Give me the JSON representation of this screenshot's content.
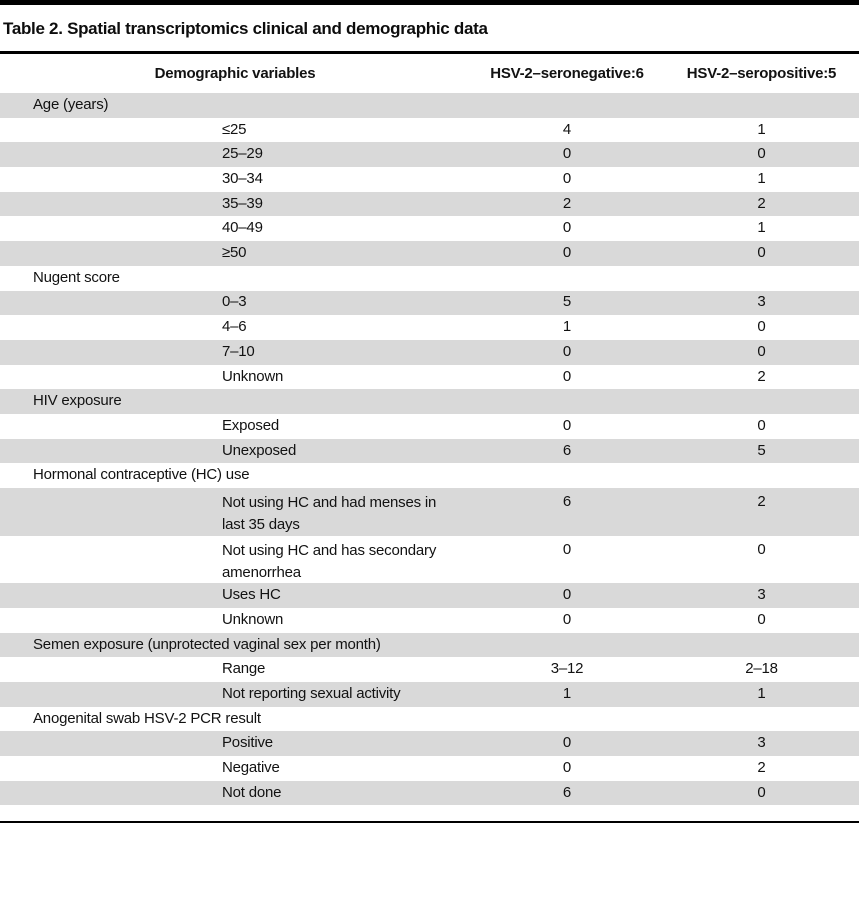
{
  "table": {
    "title": "Table 2. Spatial transcriptomics clinical and demographic data",
    "columns": {
      "label": "Demographic variables",
      "neg": "HSV-2–seronegative:6",
      "pos": "HSV-2–seropositive:5"
    },
    "rows": [
      {
        "type": "section",
        "label": "Age (years)",
        "neg": "",
        "pos": ""
      },
      {
        "type": "item",
        "label": "≤25",
        "neg": "4",
        "pos": "1"
      },
      {
        "type": "item",
        "label": "25–29",
        "neg": "0",
        "pos": "0"
      },
      {
        "type": "item",
        "label": "30–34",
        "neg": "0",
        "pos": "1"
      },
      {
        "type": "item",
        "label": "35–39",
        "neg": "2",
        "pos": "2"
      },
      {
        "type": "item",
        "label": "40–49",
        "neg": "0",
        "pos": "1"
      },
      {
        "type": "item",
        "label": "≥50",
        "neg": "0",
        "pos": "0"
      },
      {
        "type": "section",
        "label": "Nugent score",
        "neg": "",
        "pos": ""
      },
      {
        "type": "item",
        "label": "0–3",
        "neg": "5",
        "pos": "3"
      },
      {
        "type": "item",
        "label": "4–6",
        "neg": "1",
        "pos": "0"
      },
      {
        "type": "item",
        "label": "7–10",
        "neg": "0",
        "pos": "0"
      },
      {
        "type": "item",
        "label": "Unknown",
        "neg": "0",
        "pos": "2"
      },
      {
        "type": "section",
        "label": "HIV exposure",
        "neg": "",
        "pos": ""
      },
      {
        "type": "item",
        "label": "Exposed",
        "neg": "0",
        "pos": "0"
      },
      {
        "type": "item",
        "label": "Unexposed",
        "neg": "6",
        "pos": "5"
      },
      {
        "type": "section",
        "label": "Hormonal contraceptive (HC) use",
        "neg": "",
        "pos": ""
      },
      {
        "type": "item",
        "label": "Not using HC and had menses in last 35 days",
        "neg": "6",
        "pos": "2"
      },
      {
        "type": "item",
        "label": "Not using HC and has secondary amenorrhea",
        "neg": "0",
        "pos": "0"
      },
      {
        "type": "item",
        "label": "Uses HC",
        "neg": "0",
        "pos": "3"
      },
      {
        "type": "item",
        "label": "Unknown",
        "neg": "0",
        "pos": "0"
      },
      {
        "type": "section",
        "label": "Semen exposure (unprotected vaginal sex per month)",
        "neg": "",
        "pos": ""
      },
      {
        "type": "item",
        "label": "Range",
        "neg": "3–12",
        "pos": "2–18"
      },
      {
        "type": "item",
        "label": "Not reporting sexual activity",
        "neg": "1",
        "pos": "1"
      },
      {
        "type": "section",
        "label": "Anogenital swab HSV-2 PCR result",
        "neg": "",
        "pos": ""
      },
      {
        "type": "item",
        "label": "Positive",
        "neg": "0",
        "pos": "3"
      },
      {
        "type": "item",
        "label": "Negative",
        "neg": "0",
        "pos": "2"
      },
      {
        "type": "item",
        "label": "Not done",
        "neg": "6",
        "pos": "0"
      }
    ]
  },
  "colors": {
    "stripe": "#d9d9d9",
    "rule": "#000000",
    "text": "#121212"
  }
}
